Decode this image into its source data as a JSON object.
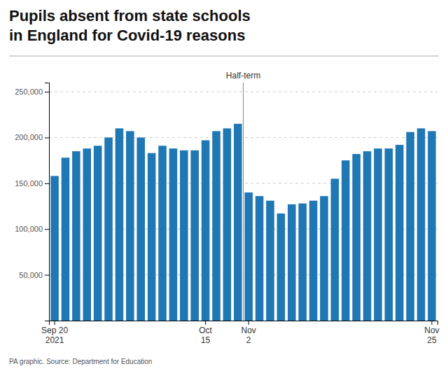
{
  "chart_data": {
    "type": "bar",
    "title": "Pupils absent from state schools\nin England for Covid-19 reasons",
    "categories": [
      "Sep 20\n2021",
      null,
      null,
      null,
      null,
      null,
      null,
      null,
      null,
      null,
      null,
      null,
      null,
      null,
      "Oct\n15",
      null,
      null,
      null,
      "Nov\n2",
      null,
      null,
      null,
      null,
      null,
      null,
      null,
      null,
      null,
      null,
      null,
      null,
      null,
      null,
      null,
      null,
      "Nov\n25"
    ],
    "values": [
      158000,
      178000,
      185000,
      188000,
      191000,
      200000,
      210000,
      207000,
      200000,
      183000,
      191000,
      188000,
      186000,
      186000,
      197000,
      207000,
      210000,
      215000,
      140000,
      136000,
      131000,
      117000,
      127000,
      128000,
      131000,
      136000,
      155000,
      175000,
      182000,
      185000,
      188000,
      188000,
      192000,
      206000,
      210000,
      207000
    ],
    "ylim": [
      0,
      260000
    ],
    "yticks": [
      {
        "value": 50000,
        "label": "50,000"
      },
      {
        "value": 100000,
        "label": "100,000"
      },
      {
        "value": 150000,
        "label": "150,000"
      },
      {
        "value": 200000,
        "label": "200,000"
      },
      {
        "value": 250000,
        "label": "250,000"
      }
    ],
    "grid": true,
    "annotations": [
      {
        "text": "Half-term",
        "x": 17.5
      },
      {
        "text": "PA graphic. Source: Department for Education"
      }
    ]
  }
}
